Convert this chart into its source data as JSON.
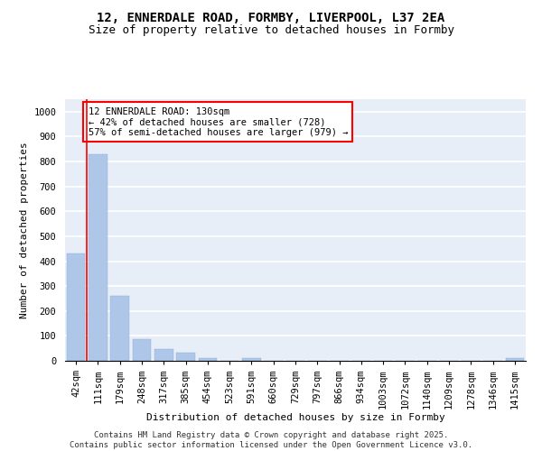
{
  "title1": "12, ENNERDALE ROAD, FORMBY, LIVERPOOL, L37 2EA",
  "title2": "Size of property relative to detached houses in Formby",
  "xlabel": "Distribution of detached houses by size in Formby",
  "ylabel": "Number of detached properties",
  "categories": [
    "42sqm",
    "111sqm",
    "179sqm",
    "248sqm",
    "317sqm",
    "385sqm",
    "454sqm",
    "523sqm",
    "591sqm",
    "660sqm",
    "729sqm",
    "797sqm",
    "866sqm",
    "934sqm",
    "1003sqm",
    "1072sqm",
    "1140sqm",
    "1209sqm",
    "1278sqm",
    "1346sqm",
    "1415sqm"
  ],
  "values": [
    430,
    828,
    260,
    88,
    47,
    33,
    10,
    0,
    10,
    0,
    0,
    0,
    0,
    0,
    0,
    0,
    0,
    0,
    0,
    0,
    10
  ],
  "bar_color": "#aec6e8",
  "red_line_x": 0.5,
  "annotation_text": "12 ENNERDALE ROAD: 130sqm\n← 42% of detached houses are smaller (728)\n57% of semi-detached houses are larger (979) →",
  "annotation_box_color": "white",
  "annotation_box_edge_color": "red",
  "footer": "Contains HM Land Registry data © Crown copyright and database right 2025.\nContains public sector information licensed under the Open Government Licence v3.0.",
  "ylim": [
    0,
    1050
  ],
  "yticks": [
    0,
    100,
    200,
    300,
    400,
    500,
    600,
    700,
    800,
    900,
    1000
  ],
  "background_color": "#e8eef8",
  "grid_color": "white",
  "title_fontsize": 10,
  "subtitle_fontsize": 9,
  "axis_label_fontsize": 8,
  "tick_fontsize": 7.5,
  "footer_fontsize": 6.5
}
